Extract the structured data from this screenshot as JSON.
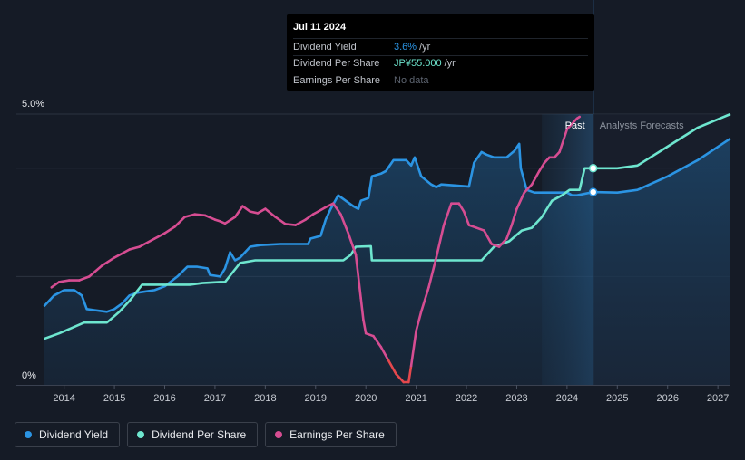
{
  "tooltip": {
    "date": "Jul 11 2024",
    "rows": [
      {
        "label": "Dividend Yield",
        "value": "3.6%",
        "unit": "/yr",
        "color": "#2b94e3"
      },
      {
        "label": "Dividend Per Share",
        "value": "JP¥55.000",
        "unit": "/yr",
        "color": "#6ee6cf"
      },
      {
        "label": "Earnings Per Share",
        "value": "No data",
        "unit": "",
        "color": "#5d6470"
      }
    ]
  },
  "legend": [
    {
      "label": "Dividend Yield",
      "color": "#2b94e3"
    },
    {
      "label": "Dividend Per Share",
      "color": "#6ee6cf"
    },
    {
      "label": "Earnings Per Share",
      "color": "#d64d92"
    }
  ],
  "chart_data": {
    "type": "line",
    "title": "",
    "xlim": [
      2013.6,
      2027.25
    ],
    "ylim": [
      0,
      5.0
    ],
    "ytick_labels": [
      "5.0%",
      "0%"
    ],
    "xtick_labels": [
      "2014",
      "2015",
      "2016",
      "2017",
      "2018",
      "2019",
      "2020",
      "2021",
      "2022",
      "2023",
      "2024",
      "2025",
      "2026",
      "2027"
    ],
    "xticks": [
      2014,
      2015,
      2016,
      2017,
      2018,
      2019,
      2020,
      2021,
      2022,
      2023,
      2024,
      2025,
      2026,
      2027
    ],
    "past_label": "Past",
    "forecast_label": "Analysts Forecasts",
    "past_band_start": 2023.5,
    "forecast_start": 2024.52,
    "series": [
      {
        "name": "Dividend Yield",
        "color": "#2b94e3",
        "area": true,
        "x": [
          2013.6,
          2013.8,
          2014.0,
          2014.2,
          2014.35,
          2014.45,
          2014.6,
          2014.85,
          2015.0,
          2015.15,
          2015.3,
          2015.45,
          2015.8,
          2016.0,
          2016.25,
          2016.45,
          2016.65,
          2016.85,
          2016.9,
          2017.1,
          2017.2,
          2017.3,
          2017.4,
          2017.5,
          2017.7,
          2017.9,
          2018.3,
          2018.6,
          2018.85,
          2018.9,
          2019.1,
          2019.2,
          2019.3,
          2019.45,
          2019.6,
          2019.75,
          2019.85,
          2019.9,
          2020.05,
          2020.12,
          2020.3,
          2020.4,
          2020.55,
          2020.8,
          2020.9,
          2020.97,
          2021.1,
          2021.3,
          2021.4,
          2021.5,
          2021.8,
          2022.05,
          2022.15,
          2022.3,
          2022.4,
          2022.55,
          2022.8,
          2022.95,
          2023.05,
          2023.08,
          2023.2,
          2023.35,
          2023.5,
          2023.8,
          2024.0,
          2024.1,
          2024.2,
          2024.52,
          2025.0,
          2025.4,
          2026.0,
          2026.6,
          2027.25
        ],
        "y": [
          1.45,
          1.65,
          1.75,
          1.75,
          1.65,
          1.4,
          1.38,
          1.35,
          1.4,
          1.5,
          1.65,
          1.7,
          1.75,
          1.82,
          2.0,
          2.18,
          2.18,
          2.15,
          2.03,
          2.0,
          2.15,
          2.45,
          2.3,
          2.35,
          2.55,
          2.58,
          2.6,
          2.6,
          2.6,
          2.7,
          2.75,
          3.05,
          3.25,
          3.5,
          3.4,
          3.3,
          3.25,
          3.4,
          3.45,
          3.85,
          3.9,
          3.95,
          4.15,
          4.15,
          4.05,
          4.2,
          3.85,
          3.7,
          3.65,
          3.7,
          3.68,
          3.66,
          4.1,
          4.3,
          4.25,
          4.2,
          4.2,
          4.32,
          4.45,
          4.0,
          3.6,
          3.55,
          3.55,
          3.55,
          3.55,
          3.5,
          3.5,
          3.56,
          3.55,
          3.6,
          3.85,
          4.15,
          4.55
        ],
        "markers": [
          2024.52
        ]
      },
      {
        "name": "Dividend Per Share",
        "color": "#6ee6cf",
        "area": false,
        "x": [
          2013.6,
          2013.9,
          2014.15,
          2014.4,
          2014.6,
          2014.85,
          2015.1,
          2015.3,
          2015.55,
          2016.5,
          2016.75,
          2017.1,
          2017.2,
          2017.5,
          2017.8,
          2018.5,
          2019.0,
          2019.4,
          2019.55,
          2019.7,
          2019.8,
          2020.1,
          2020.12,
          2020.5,
          2021.0,
          2021.5,
          2022.0,
          2022.1,
          2022.3,
          2022.55,
          2022.7,
          2022.85,
          2023.1,
          2023.3,
          2023.5,
          2023.7,
          2023.9,
          2024.05,
          2024.25,
          2024.35,
          2024.52,
          2025.0,
          2025.4,
          2026.0,
          2026.6,
          2027.25
        ],
        "y": [
          0.85,
          0.95,
          1.05,
          1.15,
          1.15,
          1.15,
          1.35,
          1.55,
          1.85,
          1.85,
          1.88,
          1.9,
          1.9,
          2.25,
          2.3,
          2.3,
          2.3,
          2.3,
          2.3,
          2.4,
          2.55,
          2.56,
          2.3,
          2.3,
          2.3,
          2.3,
          2.3,
          2.3,
          2.3,
          2.55,
          2.6,
          2.65,
          2.85,
          2.9,
          3.1,
          3.4,
          3.5,
          3.6,
          3.6,
          4.0,
          4.0,
          4.0,
          4.05,
          4.4,
          4.75,
          5.0
        ],
        "markers": [
          2024.52
        ]
      },
      {
        "name": "Earnings Per Share",
        "color": "#d64d92",
        "area": false,
        "x": [
          2013.75,
          2013.9,
          2014.1,
          2014.3,
          2014.5,
          2014.75,
          2015.0,
          2015.3,
          2015.5,
          2015.8,
          2016.0,
          2016.2,
          2016.4,
          2016.6,
          2016.8,
          2017.0,
          2017.1,
          2017.2,
          2017.4,
          2017.55,
          2017.7,
          2017.85,
          2018.0,
          2018.2,
          2018.4,
          2018.6,
          2018.8,
          2018.95,
          2019.05,
          2019.2,
          2019.35,
          2019.5,
          2019.65,
          2019.8,
          2019.9,
          2019.95,
          2020.0,
          2020.15,
          2020.3,
          2020.45,
          2020.6,
          2020.75,
          2020.85,
          2020.9,
          2021.0,
          2021.1,
          2021.25,
          2021.4,
          2021.55,
          2021.7,
          2021.85,
          2021.95,
          2022.05,
          2022.2,
          2022.35,
          2022.5,
          2022.65,
          2022.8,
          2022.9,
          2023.0,
          2023.15,
          2023.3,
          2023.45,
          2023.55,
          2023.65,
          2023.75,
          2023.85,
          2024.0,
          2024.2,
          2024.25
        ],
        "y": [
          1.8,
          1.9,
          1.93,
          1.93,
          2.0,
          2.2,
          2.35,
          2.5,
          2.55,
          2.7,
          2.8,
          2.92,
          3.1,
          3.15,
          3.13,
          3.05,
          3.02,
          2.98,
          3.1,
          3.3,
          3.2,
          3.17,
          3.25,
          3.1,
          2.97,
          2.95,
          3.05,
          3.15,
          3.2,
          3.28,
          3.35,
          3.15,
          2.8,
          2.4,
          1.6,
          1.2,
          0.95,
          0.9,
          0.7,
          0.45,
          0.2,
          0.05,
          0.05,
          0.35,
          1.0,
          1.35,
          1.8,
          2.35,
          2.95,
          3.35,
          3.35,
          3.2,
          2.95,
          2.9,
          2.85,
          2.6,
          2.55,
          2.7,
          2.95,
          3.25,
          3.55,
          3.7,
          3.95,
          4.1,
          4.2,
          4.2,
          4.3,
          4.72,
          4.92,
          4.95
        ],
        "markers": []
      }
    ]
  }
}
